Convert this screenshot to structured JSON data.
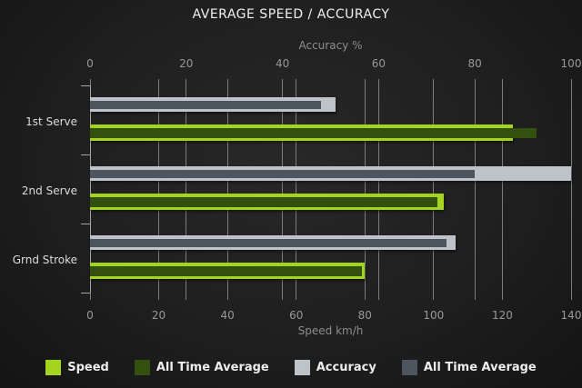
{
  "title": "AVERAGE SPEED / ACCURACY",
  "chart_data": {
    "type": "bar",
    "orientation": "horizontal",
    "grid": true,
    "legend_position": "bottom",
    "categories": [
      "1st Serve",
      "2nd Serve",
      "Grnd Stroke"
    ],
    "axes": {
      "top": {
        "label": "Accuracy %",
        "min": 0,
        "max": 100,
        "ticks": [
          0,
          20,
          40,
          60,
          80,
          100
        ]
      },
      "bottom": {
        "label": "Speed km/h",
        "min": 0,
        "max": 140,
        "ticks": [
          0,
          20,
          40,
          60,
          80,
          100,
          120,
          140
        ]
      }
    },
    "series": [
      {
        "name": "Speed",
        "axis": "bottom",
        "role": "outer",
        "color": "#a5d41f",
        "values": [
          123,
          103,
          80
        ]
      },
      {
        "name": "All Time Average",
        "axis": "bottom",
        "role": "inner",
        "color": "#33500e",
        "values": [
          130,
          101,
          79
        ]
      },
      {
        "name": "Accuracy",
        "axis": "top",
        "role": "outer",
        "color": "#bdc3c8",
        "values": [
          51,
          100,
          76
        ]
      },
      {
        "name": "All Time Average",
        "axis": "top",
        "role": "inner",
        "color": "#4d555e",
        "values": [
          48,
          80,
          74
        ]
      }
    ],
    "colors": {
      "background_center": "#282828",
      "background_edge": "#141414",
      "gridline": "#7c7c7c",
      "axis_spine": "#a3a3a3",
      "tick_label": "#989898",
      "category_label": "#dcdcdc",
      "title": "#efefef",
      "legend_text": "#ededed"
    }
  }
}
